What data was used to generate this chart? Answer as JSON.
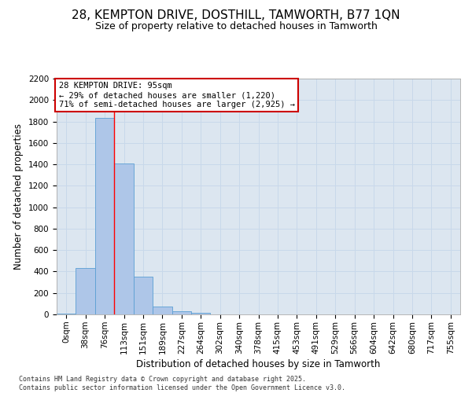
{
  "title_line1": "28, KEMPTON DRIVE, DOSTHILL, TAMWORTH, B77 1QN",
  "title_line2": "Size of property relative to detached houses in Tamworth",
  "xlabel": "Distribution of detached houses by size in Tamworth",
  "ylabel": "Number of detached properties",
  "categories": [
    "0sqm",
    "38sqm",
    "76sqm",
    "113sqm",
    "151sqm",
    "189sqm",
    "227sqm",
    "264sqm",
    "302sqm",
    "340sqm",
    "378sqm",
    "415sqm",
    "453sqm",
    "491sqm",
    "529sqm",
    "566sqm",
    "604sqm",
    "642sqm",
    "680sqm",
    "717sqm",
    "755sqm"
  ],
  "bar_heights": [
    10,
    430,
    1830,
    1410,
    355,
    75,
    30,
    15,
    0,
    0,
    0,
    0,
    0,
    0,
    0,
    0,
    0,
    0,
    0,
    0,
    0
  ],
  "bar_color": "#aec6e8",
  "bar_edge_color": "#5a9fd4",
  "grid_color": "#c8d8ea",
  "background_color": "#dce6f0",
  "annotation_text": "28 KEMPTON DRIVE: 95sqm\n← 29% of detached houses are smaller (1,220)\n71% of semi-detached houses are larger (2,925) →",
  "annotation_box_color": "#cc0000",
  "property_line_x": 2.5,
  "ylim": [
    0,
    2200
  ],
  "yticks": [
    0,
    200,
    400,
    600,
    800,
    1000,
    1200,
    1400,
    1600,
    1800,
    2000,
    2200
  ],
  "footer": "Contains HM Land Registry data © Crown copyright and database right 2025.\nContains public sector information licensed under the Open Government Licence v3.0.",
  "title_fontsize": 11,
  "subtitle_fontsize": 9,
  "axis_label_fontsize": 8.5,
  "tick_fontsize": 7.5,
  "annotation_fontsize": 7.5
}
